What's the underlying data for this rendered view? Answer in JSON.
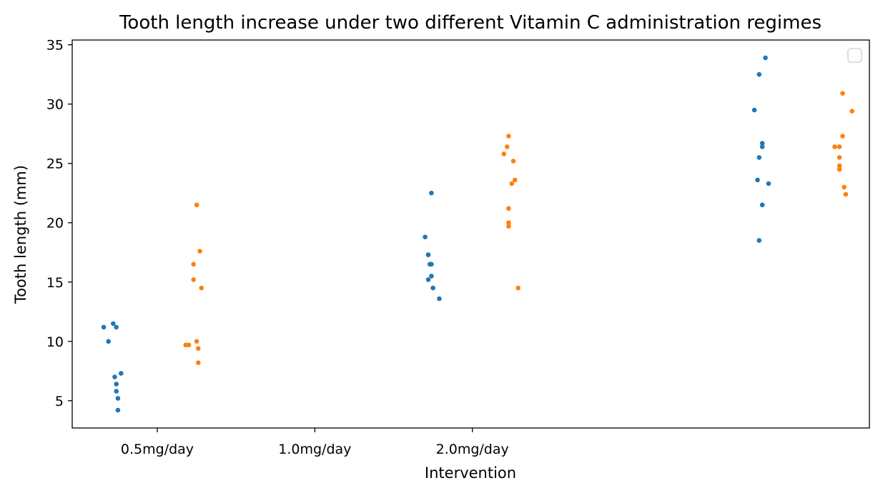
{
  "chart_data": {
    "type": "scatter",
    "title": "Tooth length increase under two different Vitamin C administration regimes",
    "xlabel": "Intervention",
    "ylabel": "Tooth length (mm)",
    "ylim": [
      2.7,
      35.4
    ],
    "y_ticks": [
      5,
      10,
      15,
      20,
      25,
      30,
      35
    ],
    "x_ticks": [
      {
        "label": "0.5mg/day",
        "pos": 0
      },
      {
        "label": "1.0mg/day",
        "pos": 1
      },
      {
        "label": "2.0mg/day",
        "pos": 2
      }
    ],
    "xlim": [
      -0.54,
      4.52
    ],
    "grid": false,
    "legend": {
      "location": "top-right",
      "entries": []
    },
    "series": [
      {
        "color": "#1f77b4",
        "x": [
          -0.25,
          -0.28,
          -0.23,
          -0.26,
          -0.26,
          -0.31,
          -0.26,
          -0.34,
          -0.25,
          -0.27,
          1.73,
          1.74,
          1.72,
          1.72,
          1.74,
          1.72,
          1.79,
          1.75,
          1.7,
          1.74,
          3.81,
          3.82,
          3.86,
          3.82,
          3.84,
          3.82,
          3.84,
          3.84,
          3.88,
          3.79
        ],
        "y": [
          4.2,
          11.5,
          7.3,
          5.8,
          6.4,
          10.0,
          11.2,
          11.2,
          5.2,
          7.0,
          16.5,
          16.5,
          15.2,
          17.3,
          22.5,
          17.3,
          13.6,
          14.5,
          18.8,
          15.5,
          23.6,
          18.5,
          33.9,
          25.5,
          26.4,
          32.5,
          26.7,
          21.5,
          23.3,
          29.5
        ]
      },
      {
        "color": "#ff7f0e",
        "x": [
          0.23,
          0.25,
          0.27,
          0.2,
          0.28,
          0.25,
          0.26,
          0.26,
          0.23,
          0.18,
          2.23,
          2.25,
          2.27,
          2.22,
          2.23,
          2.26,
          2.2,
          2.23,
          2.29,
          2.23,
          4.33,
          4.33,
          4.37,
          4.33,
          4.33,
          4.35,
          4.3,
          4.35,
          4.41,
          4.36
        ],
        "y": [
          15.2,
          21.5,
          17.6,
          9.7,
          14.5,
          10.0,
          8.2,
          9.4,
          16.5,
          9.7,
          19.7,
          23.3,
          23.6,
          26.4,
          20.0,
          25.2,
          25.8,
          21.2,
          14.5,
          27.3,
          25.5,
          26.4,
          22.4,
          24.5,
          24.8,
          30.9,
          26.4,
          27.3,
          29.4,
          23.0
        ]
      }
    ]
  }
}
